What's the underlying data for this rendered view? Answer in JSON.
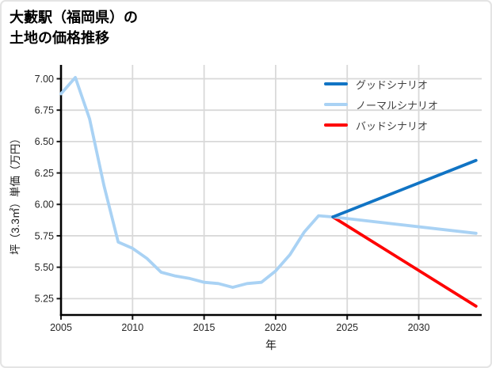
{
  "header": {
    "title_line1": "大藪駅（福岡県）の",
    "title_line2": "土地の価格推移"
  },
  "chart_data": {
    "type": "line",
    "title": "大藪駅（福岡県）の土地の価格推移",
    "xlabel": "年",
    "ylabel": "坪（3.3㎡）単価（万円）",
    "x_ticks": [
      2005,
      2010,
      2015,
      2020,
      2025,
      2030
    ],
    "y_ticks": [
      5.25,
      5.5,
      5.75,
      6.0,
      6.25,
      6.5,
      6.75,
      7.0
    ],
    "xlim": [
      2005,
      2034.4
    ],
    "ylim": [
      5.12,
      7.11
    ],
    "grid": true,
    "legend_position": "upper-right",
    "style": {
      "grid_color": "#d9d9d9",
      "spine_color": "#000000",
      "tick_label_color": "#262626"
    },
    "series": [
      {
        "id": "history",
        "name": null,
        "color": "#a9d2f4",
        "x": [
          2005,
          2006,
          2007,
          2008,
          2009,
          2010,
          2011,
          2012,
          2013,
          2014,
          2015,
          2016,
          2017,
          2018,
          2019,
          2020,
          2021,
          2022,
          2023,
          2024
        ],
        "values": [
          6.88,
          7.01,
          6.68,
          6.15,
          5.7,
          5.65,
          5.57,
          5.46,
          5.43,
          5.41,
          5.38,
          5.37,
          5.34,
          5.37,
          5.38,
          5.47,
          5.6,
          5.78,
          5.91,
          5.9
        ]
      },
      {
        "id": "bad-scenario",
        "name": "バッドシナリオ",
        "color": "#fe0000",
        "x": [
          2024,
          2034
        ],
        "values": [
          5.9,
          5.19
        ]
      },
      {
        "id": "normal-scenario",
        "name": "ノーマルシナリオ",
        "color": "#a9d2f4",
        "x": [
          2024,
          2034
        ],
        "values": [
          5.9,
          5.77
        ]
      },
      {
        "id": "good-scenario",
        "name": "グッドシナリオ",
        "color": "#1174c4",
        "x": [
          2024,
          2034
        ],
        "values": [
          5.9,
          6.35
        ]
      }
    ],
    "legend": [
      "グッドシナリオ",
      "ノーマルシナリオ",
      "バッドシナリオ"
    ]
  }
}
